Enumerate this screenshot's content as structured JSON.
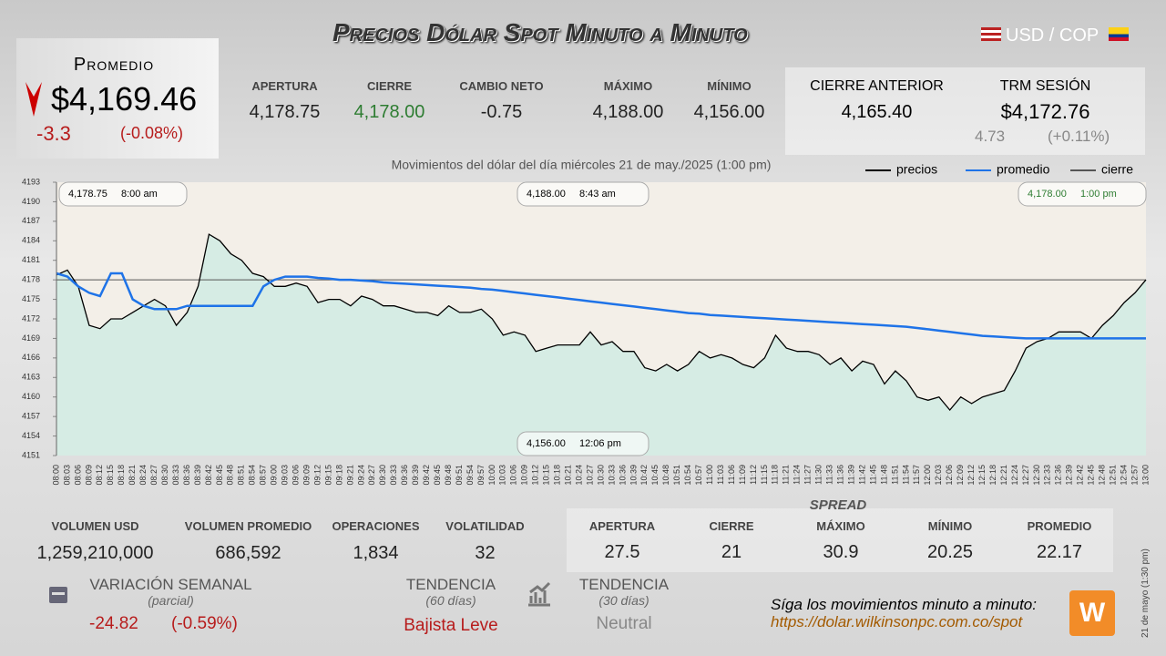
{
  "header": {
    "title": "Precios Dólar Spot Minuto a Minuto",
    "pair": "USD / COP"
  },
  "average": {
    "label": "Promedio",
    "value": "$4,169.46",
    "change": "-3.3",
    "change_pct": "(-0.08%)"
  },
  "stats": [
    {
      "label": "APERTURA",
      "value": "4,178.75"
    },
    {
      "label": "CIERRE",
      "value": "4,178.00"
    },
    {
      "label": "CAMBIO NETO",
      "value": "-0.75"
    },
    {
      "label": "MÁXIMO",
      "value": "4,188.00"
    },
    {
      "label": "MÍNIMO",
      "value": "4,156.00"
    }
  ],
  "previous_close": {
    "label": "CIERRE ANTERIOR",
    "value": "4,165.40"
  },
  "trm": {
    "label": "TRM SESIÓN",
    "value": "$4,172.76",
    "change": "4.73",
    "change_pct": "(+0.11%)"
  },
  "chart_data": {
    "type": "line",
    "title": "Movimientos del dólar del día miércoles 21 de may./2025 (1:00 pm)",
    "categories": [
      "08:00",
      "08:03",
      "08:06",
      "08:09",
      "08:12",
      "08:15",
      "08:18",
      "08:21",
      "08:24",
      "08:27",
      "08:30",
      "08:33",
      "08:36",
      "08:39",
      "08:42",
      "08:45",
      "08:48",
      "08:51",
      "08:54",
      "08:57",
      "09:00",
      "09:03",
      "09:06",
      "09:09",
      "09:12",
      "09:15",
      "09:18",
      "09:21",
      "09:24",
      "09:27",
      "09:30",
      "09:33",
      "09:36",
      "09:39",
      "09:42",
      "09:45",
      "09:48",
      "09:51",
      "09:54",
      "09:57",
      "10:00",
      "10:03",
      "10:06",
      "10:09",
      "10:12",
      "10:15",
      "10:18",
      "10:21",
      "10:24",
      "10:27",
      "10:30",
      "10:33",
      "10:36",
      "10:39",
      "10:42",
      "10:45",
      "10:48",
      "10:51",
      "10:54",
      "10:57",
      "11:00",
      "11:03",
      "11:06",
      "11:09",
      "11:12",
      "11:15",
      "11:18",
      "11:21",
      "11:24",
      "11:27",
      "11:30",
      "11:33",
      "11:36",
      "11:39",
      "11:42",
      "11:45",
      "11:48",
      "11:51",
      "11:54",
      "11:57",
      "12:00",
      "12:03",
      "12:06",
      "12:09",
      "12:12",
      "12:15",
      "12:18",
      "12:21",
      "12:24",
      "12:27",
      "12:30",
      "12:33",
      "12:36",
      "12:39",
      "12:42",
      "12:45",
      "12:48",
      "12:51",
      "12:54",
      "12:57",
      "13:00"
    ],
    "series": [
      {
        "name": "precios",
        "color": "#000000",
        "values": [
          4178.75,
          4179.5,
          4177,
          4171,
          4170.5,
          4172,
          4172,
          4173,
          4174,
          4175,
          4174,
          4171,
          4173,
          4177,
          4185,
          4184,
          4182,
          4181,
          4179,
          4178.5,
          4177,
          4177,
          4177.5,
          4177,
          4174.5,
          4175,
          4175,
          4174,
          4175.5,
          4175,
          4174,
          4174,
          4173.5,
          4173,
          4173,
          4172.5,
          4174,
          4173,
          4173,
          4173.5,
          4172,
          4169.5,
          4170,
          4169.5,
          4167,
          4167.5,
          4168,
          4168,
          4168,
          4170,
          4168,
          4168.5,
          4167,
          4167,
          4164.5,
          4164,
          4165,
          4164,
          4165,
          4167,
          4166,
          4166.5,
          4166,
          4165,
          4164.5,
          4166,
          4169.5,
          4167.5,
          4167,
          4167,
          4166.5,
          4165,
          4166,
          4164,
          4165.5,
          4165,
          4162,
          4164,
          4162.5,
          4160,
          4159.5,
          4160,
          4158,
          4160,
          4159,
          4160,
          4160.5,
          4161,
          4164,
          4167.5,
          4168.5,
          4169,
          4170,
          4170,
          4170,
          4169,
          4171,
          4172.5,
          4174.5,
          4176,
          4178
        ]
      },
      {
        "name": "promedio",
        "color": "#1e73e8",
        "values": [
          4179,
          4178.5,
          4177,
          4176,
          4175.5,
          4179,
          4179,
          4175,
          4174,
          4173.5,
          4173.5,
          4173.5,
          4174,
          4174,
          4174,
          4174,
          4174,
          4174,
          4174,
          4177,
          4178,
          4178.5,
          4178.5,
          4178.5,
          4178.3,
          4178.2,
          4178,
          4178,
          4177.9,
          4177.8,
          4177.6,
          4177.5,
          4177.4,
          4177.3,
          4177.2,
          4177.1,
          4177,
          4176.9,
          4176.8,
          4176.6,
          4176.5,
          4176.3,
          4176.1,
          4175.9,
          4175.7,
          4175.5,
          4175.3,
          4175.1,
          4174.9,
          4174.7,
          4174.5,
          4174.3,
          4174.1,
          4173.9,
          4173.7,
          4173.5,
          4173.3,
          4173.1,
          4172.9,
          4172.8,
          4172.6,
          4172.5,
          4172.4,
          4172.3,
          4172.2,
          4172.1,
          4172,
          4171.9,
          4171.8,
          4171.7,
          4171.6,
          4171.5,
          4171.4,
          4171.3,
          4171.2,
          4171.1,
          4171,
          4170.9,
          4170.8,
          4170.6,
          4170.4,
          4170.2,
          4170,
          4169.8,
          4169.6,
          4169.4,
          4169.3,
          4169.2,
          4169.1,
          4169,
          4169,
          4169,
          4169,
          4169,
          4169,
          4169,
          4169,
          4169,
          4169,
          4169,
          4169
        ]
      }
    ],
    "reference": {
      "name": "cierre",
      "color": "#555555",
      "value": 4178
    },
    "ylim": [
      4151,
      4193
    ],
    "yticks": [
      4151,
      4154,
      4157,
      4160,
      4163,
      4166,
      4169,
      4172,
      4175,
      4178,
      4181,
      4184,
      4187,
      4190,
      4193
    ],
    "annotations": [
      {
        "value": "4,178.75",
        "time": "8:00 am"
      },
      {
        "value": "4,188.00",
        "time": "8:43 am"
      },
      {
        "value": "4,178.00",
        "time": "1:00 pm"
      },
      {
        "value": "4,156.00",
        "time": "12:06 pm"
      }
    ]
  },
  "volume": [
    {
      "label": "VOLUMEN USD",
      "value": "1,259,210,000"
    },
    {
      "label": "VOLUMEN PROMEDIO",
      "value": "686,592"
    },
    {
      "label": "OPERACIONES",
      "value": "1,834"
    },
    {
      "label": "VOLATILIDAD",
      "value": "32"
    }
  ],
  "spread": {
    "title": "SPREAD",
    "items": [
      {
        "label": "APERTURA",
        "value": "27.5"
      },
      {
        "label": "CIERRE",
        "value": "21"
      },
      {
        "label": "MÁXIMO",
        "value": "30.9"
      },
      {
        "label": "MÍNIMO",
        "value": "20.25"
      },
      {
        "label": "PROMEDIO",
        "value": "22.17"
      }
    ]
  },
  "weekly": {
    "label": "VARIACIÓN SEMANAL",
    "note": "(parcial)",
    "change": "-24.82",
    "change_pct": "(-0.59%)"
  },
  "trend60": {
    "label": "TENDENCIA",
    "note": "(60 días)",
    "value": "Bajista Leve"
  },
  "trend30": {
    "label": "TENDENCIA",
    "note": "(30 días)",
    "value": "Neutral"
  },
  "footer": {
    "text": "Síga los movimientos minuto a minuto:",
    "url": "https://dolar.wilkinsonpc.com.co/spot",
    "stamp": "21 de mayo (1:30 pm)"
  }
}
